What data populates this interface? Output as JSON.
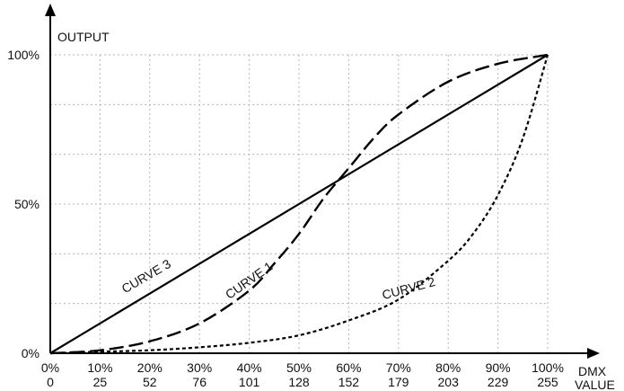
{
  "chart_data": {
    "type": "line",
    "ylabel": "OUTPUT",
    "xlabel_line1": "DMX",
    "xlabel_line2": "VALUE",
    "x_percent_labels": [
      "0%",
      "10%",
      "20%",
      "30%",
      "40%",
      "50%",
      "60%",
      "70%",
      "80%",
      "90%",
      "100%"
    ],
    "x_dmx_labels": [
      "0",
      "25",
      "52",
      "76",
      "101",
      "128",
      "152",
      "179",
      "203",
      "229",
      "255"
    ],
    "y_labels": [
      "0%",
      "50%",
      "100%"
    ],
    "xlim": [
      0,
      100
    ],
    "ylim": [
      0,
      100
    ],
    "grid": true,
    "series": [
      {
        "name": "CURVE 1",
        "style": "long-dash",
        "x": [
          0,
          10,
          20,
          30,
          40,
          45,
          50,
          55,
          60,
          65,
          70,
          80,
          90,
          100
        ],
        "y": [
          0,
          1,
          4,
          10,
          21,
          30,
          40,
          52,
          62,
          72,
          80,
          91,
          97,
          100
        ]
      },
      {
        "name": "CURVE 2",
        "style": "short-dash",
        "x": [
          0,
          10,
          20,
          30,
          40,
          50,
          60,
          70,
          80,
          85,
          90,
          95,
          100
        ],
        "y": [
          0,
          0.5,
          1,
          2,
          3.5,
          6,
          11,
          18,
          31,
          40,
          53,
          72,
          100
        ]
      },
      {
        "name": "CURVE 3",
        "style": "solid",
        "x": [
          0,
          100
        ],
        "y": [
          0,
          100
        ]
      }
    ],
    "label_positions_data": [
      {
        "series": "CURVE 3",
        "x": 15,
        "y": 20,
        "angle_deg": -30
      },
      {
        "series": "CURVE 1",
        "x": 36,
        "y": 18,
        "angle_deg": -35
      },
      {
        "series": "CURVE 2",
        "x": 67,
        "y": 18,
        "angle_deg": -15
      }
    ]
  }
}
